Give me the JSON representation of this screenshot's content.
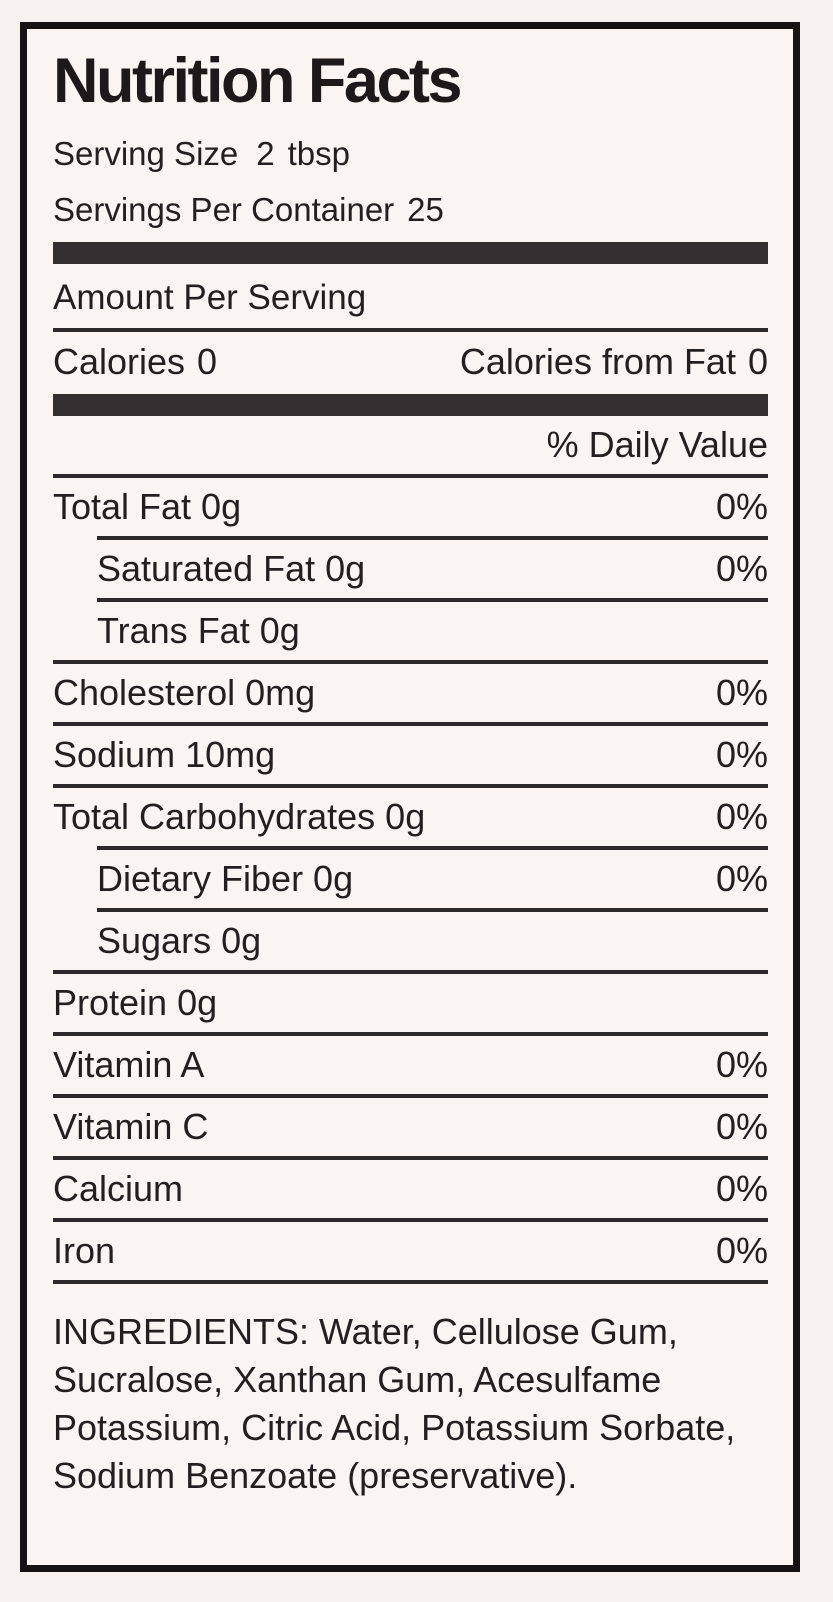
{
  "header": {
    "title": "Nutrition Facts",
    "serving_size_label": "Serving Size",
    "serving_size_value": "2",
    "serving_size_unit": "tbsp",
    "servings_per_container_label": "Servings Per Container",
    "servings_per_container_value": "25"
  },
  "amount_section": {
    "amount_per_serving_label": "Amount Per Serving",
    "calories_label": "Calories",
    "calories_value": "0",
    "calories_from_fat_label": "Calories from Fat",
    "calories_from_fat_value": "0",
    "daily_value_header": "% Daily Value"
  },
  "nutrients": [
    {
      "label": "Total Fat 0g",
      "daily_value": "0%"
    },
    {
      "label": "Saturated Fat 0g",
      "daily_value": "0%"
    },
    {
      "label": "Trans Fat 0g",
      "daily_value": ""
    },
    {
      "label": "Cholesterol 0mg",
      "daily_value": "0%"
    },
    {
      "label": "Sodium 10mg",
      "daily_value": "0%"
    },
    {
      "label": "Total Carbohydrates 0g",
      "daily_value": "0%"
    },
    {
      "label": "Dietary Fiber 0g",
      "daily_value": "0%"
    },
    {
      "label": "Sugars 0g",
      "daily_value": ""
    },
    {
      "label": "Protein 0g",
      "daily_value": ""
    },
    {
      "label": "Vitamin A",
      "daily_value": "0%"
    },
    {
      "label": "Vitamin C",
      "daily_value": "0%"
    },
    {
      "label": "Calcium",
      "daily_value": "0%"
    },
    {
      "label": "Iron",
      "daily_value": "0%"
    }
  ],
  "ingredients_text": "INGREDIENTS: Water, Cellulose Gum, Sucralose, Xanthan Gum, Acesulfame Potassium, Citric Acid, Potassium Sorbate, Sodium Benzoate (preservative).",
  "colors": {
    "page_background": "#f7f1f0",
    "label_background": "#faf4f3",
    "border": "#171314",
    "text": "#231f20",
    "thick_bar": "#343031",
    "rule": "#2d292a"
  }
}
